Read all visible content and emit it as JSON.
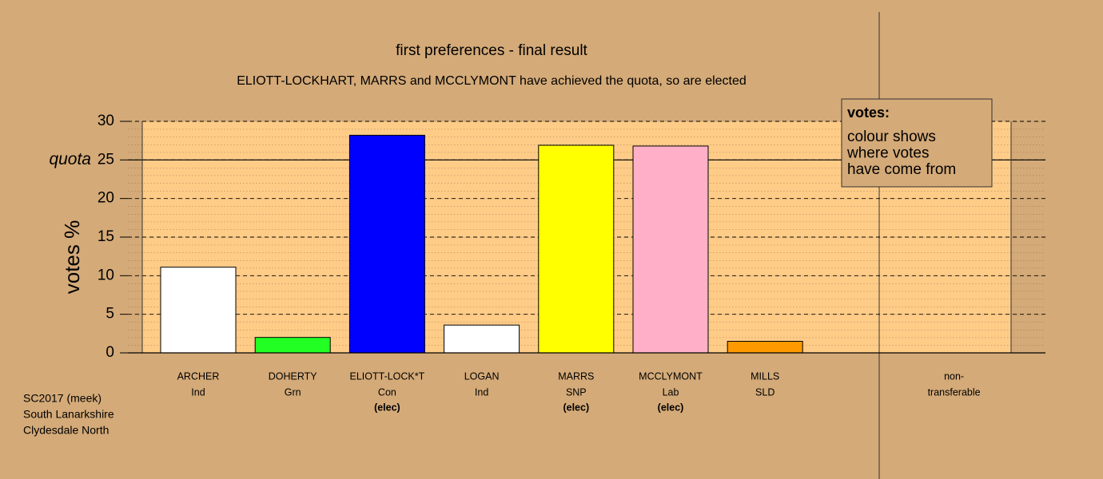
{
  "chart_data": {
    "type": "bar",
    "title": "first preferences - final result",
    "subtitle": "ELIOTT-LOCKHART, MARRS and MCCLYMONT have achieved the quota, so are elected",
    "ylabel": "votes %",
    "categories": [
      "ARCHER",
      "DOHERTY",
      "ELIOTT-LOCK*T",
      "LOGAN",
      "MARRS",
      "MCCLYMONT",
      "MILLS",
      null,
      "non-"
    ],
    "parties": [
      "Ind",
      "Grn",
      "Con",
      "Ind",
      "SNP",
      "Lab",
      "SLD",
      null,
      "transferable"
    ],
    "notes": [
      null,
      null,
      "(elec)",
      null,
      "(elec)",
      "(elec)",
      null,
      null,
      null
    ],
    "values": [
      11.1,
      2.0,
      28.2,
      3.6,
      26.9,
      26.8,
      1.5,
      null,
      0
    ],
    "colors": [
      "#ffffff",
      "#22ff22",
      "#0000ff",
      "#ffffff",
      "#ffff00",
      "#ffb0c8",
      "#ff9900",
      null,
      "#ffffff"
    ],
    "ylim": [
      0,
      30
    ],
    "yticks": [
      0,
      5,
      10,
      15,
      20,
      25,
      30
    ],
    "grid": true,
    "quota": {
      "value": 25,
      "label": "quota"
    },
    "legend": {
      "title": "votes:",
      "lines": [
        "colour shows",
        "where votes",
        "have come from"
      ]
    },
    "footer": [
      "SC2017 (meek)",
      "South Lanarkshire",
      "Clydesdale North"
    ]
  }
}
